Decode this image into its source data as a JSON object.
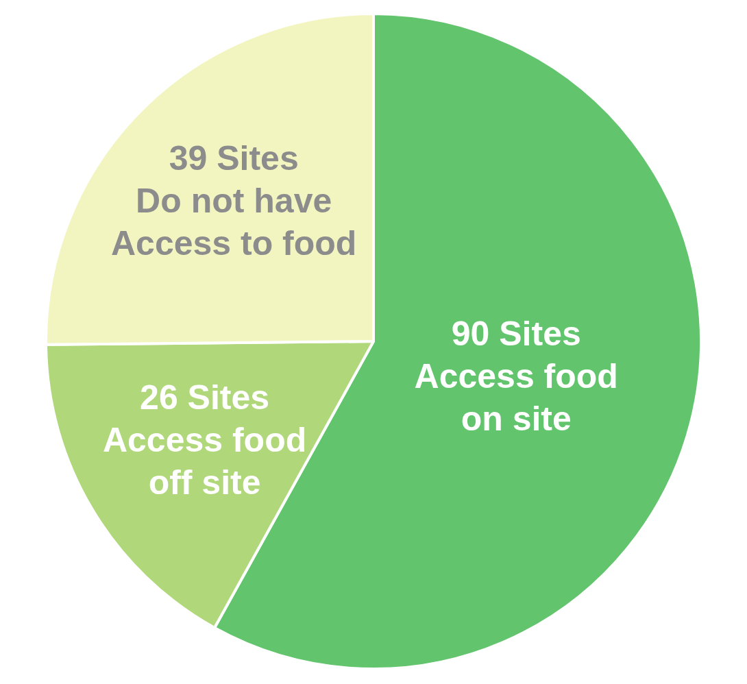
{
  "chart_data": {
    "type": "pie",
    "categories": [
      "Access food\non site",
      "Access food\noff site",
      "Do not have\nAccess to food"
    ],
    "values": [
      90,
      26,
      39
    ],
    "value_labels": [
      "90 Sites",
      "26 Sites",
      "39 Sites"
    ],
    "colors": [
      "#62c46c",
      "#b0d77a",
      "#f2f5c0"
    ],
    "legend": false
  }
}
